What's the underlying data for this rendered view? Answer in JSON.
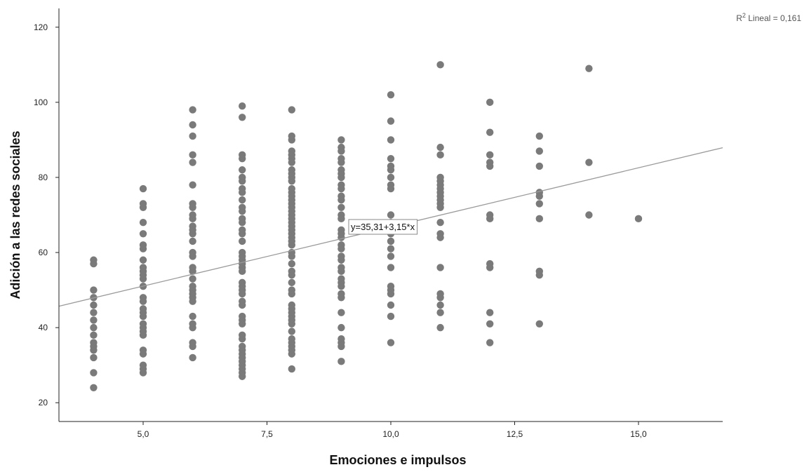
{
  "chart_data": {
    "type": "scatter",
    "title": "",
    "xlabel": "Emociones e impulsos",
    "ylabel": "Adición a las redes sociales",
    "xlim": [
      3.3,
      16.7
    ],
    "ylim": [
      15,
      125
    ],
    "x_ticks": [
      5,
      7.5,
      10,
      12.5,
      15
    ],
    "x_tick_labels": [
      "5,0",
      "7,5",
      "10,0",
      "12,5",
      "15,0"
    ],
    "y_ticks": [
      20,
      40,
      60,
      80,
      100,
      120
    ],
    "y_tick_labels": [
      "20",
      "40",
      "60",
      "80",
      "100",
      "120"
    ],
    "grid": false,
    "fit_line": {
      "intercept": 35.31,
      "slope": 3.15,
      "equation_label": "y=35,31+3,15*x",
      "r2_label": "R",
      "r2_superscript": "2",
      "r2_suffix": " Lineal = 0,161"
    },
    "point_color": "#7a7a7a",
    "line_color": "#9a9a9a",
    "points": [
      {
        "x": 4,
        "y": [
          58,
          57,
          50,
          48,
          46,
          44,
          42,
          40,
          38,
          36,
          35,
          34,
          32,
          28,
          24
        ]
      },
      {
        "x": 5,
        "y": [
          77,
          73,
          72,
          68,
          65,
          62,
          61,
          58,
          56,
          55,
          54,
          53,
          51,
          48,
          47,
          45,
          44,
          43,
          41,
          40,
          39,
          38,
          34,
          33,
          30,
          29,
          28
        ]
      },
      {
        "x": 6,
        "y": [
          98,
          94,
          91,
          86,
          84,
          78,
          73,
          72,
          70,
          69,
          67,
          66,
          65,
          63,
          60,
          59,
          56,
          55,
          53,
          51,
          50,
          49,
          48,
          47,
          43,
          41,
          40,
          36,
          35,
          32
        ]
      },
      {
        "x": 7,
        "y": [
          99,
          96,
          86,
          85,
          82,
          80,
          79,
          77,
          76,
          74,
          72,
          71,
          69,
          68,
          66,
          65,
          63,
          60,
          59,
          58,
          57,
          56,
          55,
          52,
          51,
          50,
          49,
          47,
          46,
          43,
          42,
          41,
          38,
          37,
          35,
          34,
          33,
          32,
          31,
          30,
          29,
          28,
          27
        ]
      },
      {
        "x": 8,
        "y": [
          98,
          91,
          90,
          87,
          86,
          85,
          84,
          82,
          81,
          80,
          79,
          77,
          76,
          75,
          74,
          73,
          72,
          71,
          70,
          69,
          68,
          67,
          66,
          65,
          64,
          63,
          62,
          60,
          59,
          57,
          55,
          54,
          52,
          50,
          49,
          46,
          45,
          44,
          43,
          42,
          41,
          39,
          37,
          36,
          35,
          34,
          33,
          29
        ]
      },
      {
        "x": 9,
        "y": [
          90,
          88,
          87,
          85,
          84,
          82,
          81,
          80,
          78,
          77,
          75,
          74,
          72,
          70,
          69,
          66,
          65,
          64,
          62,
          61,
          59,
          58,
          56,
          55,
          53,
          52,
          51,
          49,
          48,
          44,
          40,
          37,
          36,
          35,
          31
        ]
      },
      {
        "x": 10,
        "y": [
          102,
          95,
          90,
          85,
          83,
          82,
          80,
          78,
          77,
          70,
          68,
          65,
          63,
          61,
          59,
          56,
          51,
          50,
          49,
          46,
          43,
          36
        ]
      },
      {
        "x": 11,
        "y": [
          110,
          88,
          86,
          80,
          79,
          78,
          77,
          76,
          75,
          74,
          73,
          72,
          68,
          65,
          64,
          56,
          49,
          48,
          46,
          44,
          40
        ]
      },
      {
        "x": 12,
        "y": [
          100,
          92,
          86,
          84,
          83,
          70,
          69,
          57,
          56,
          44,
          41,
          36
        ]
      },
      {
        "x": 13,
        "y": [
          91,
          87,
          83,
          76,
          75,
          73,
          69,
          55,
          54,
          41
        ]
      },
      {
        "x": 14,
        "y": [
          109,
          84,
          70
        ]
      },
      {
        "x": 15,
        "y": [
          69
        ]
      }
    ]
  }
}
